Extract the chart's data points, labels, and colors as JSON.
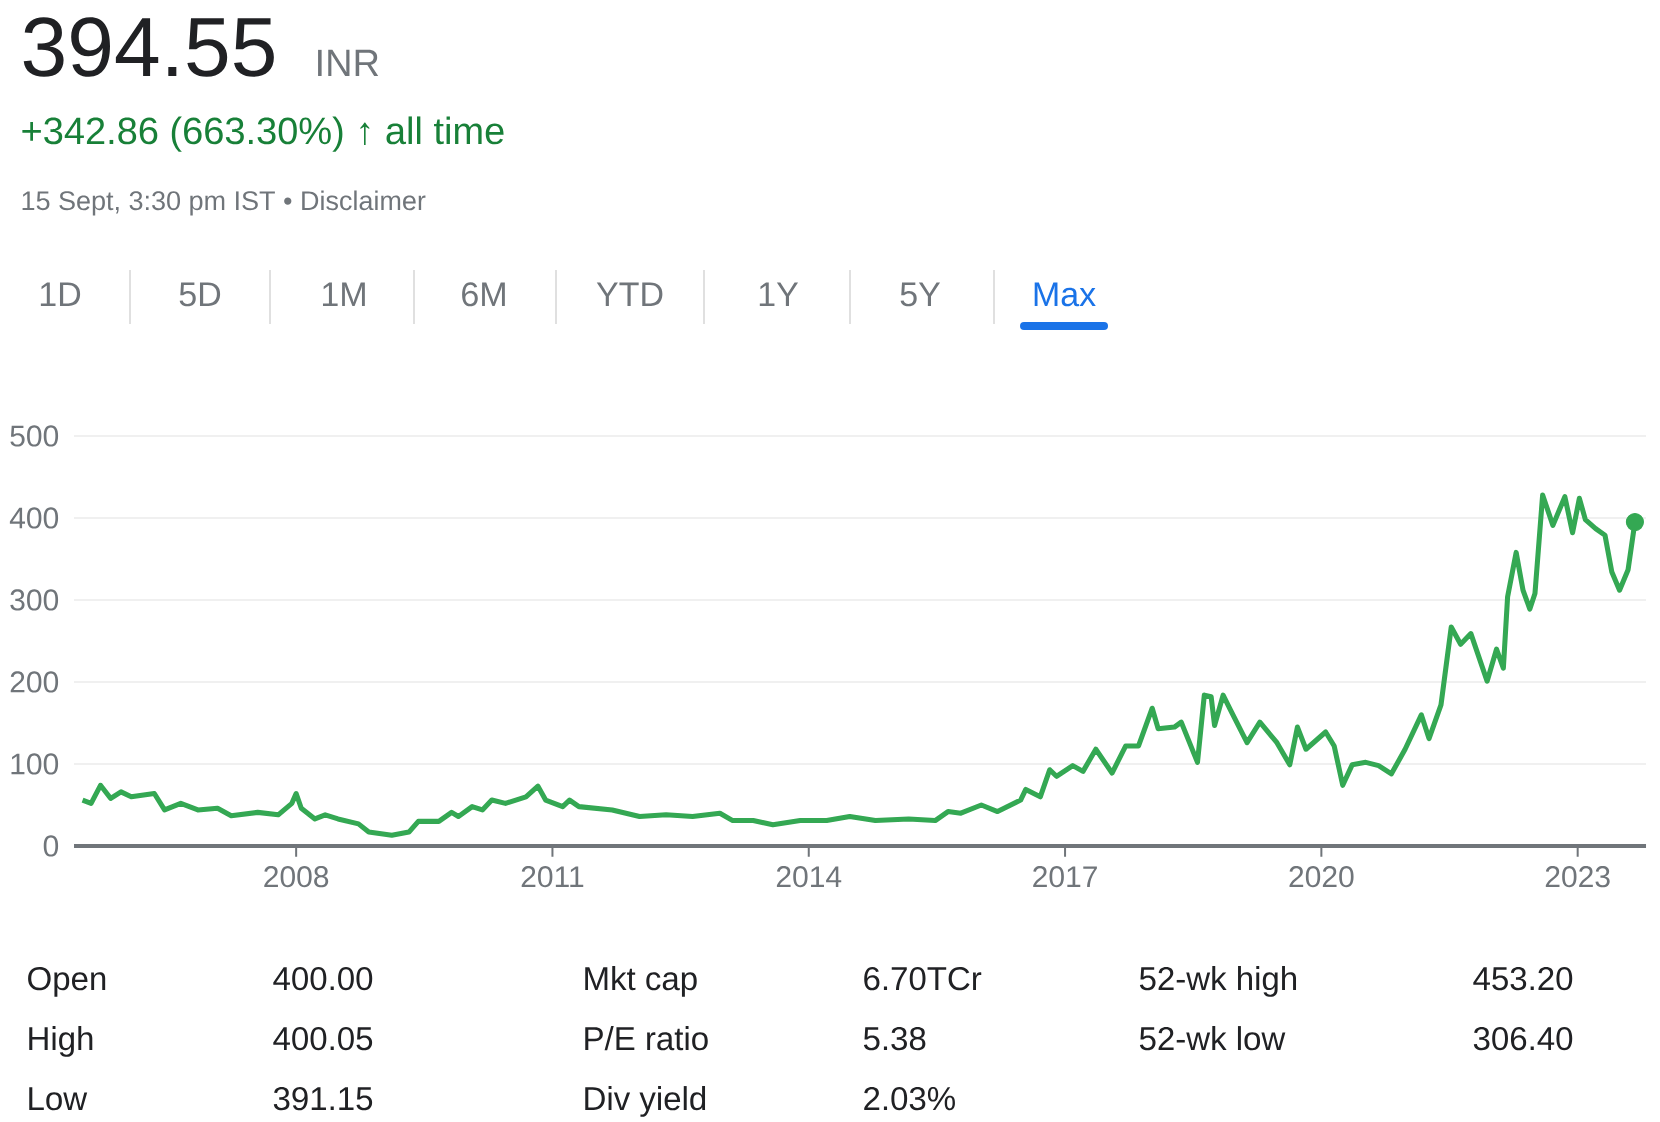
{
  "chart_data": {
    "type": "line",
    "title": "394.55",
    "subtitle": "+342.86 (663.30%) ↑ all time",
    "annotations": [
      "INR",
      "15 Sept, 3:30 pm IST • Disclaimer",
      "1D",
      "5D",
      "1M",
      "6M",
      "YTD",
      "1Y",
      "5Y",
      "Max",
      "Open",
      "400.00",
      "High",
      "400.05",
      "Low",
      "391.15",
      "Mkt cap",
      "6.70TCr",
      "P/E ratio",
      "5.38",
      "Div yield",
      "2.03%",
      "52-wk high",
      "453.20",
      "52-wk low",
      "306.40"
    ],
    "xlim": [
      2005.4,
      2023.8
    ],
    "xticks": [
      2008,
      2011,
      2014,
      2017,
      2020,
      2023
    ],
    "ylim": [
      0,
      500
    ],
    "yticks": [
      0,
      100,
      200,
      300,
      400,
      500
    ],
    "grid": "y",
    "series": [
      {
        "color": "#34a853",
        "x": [
          2005.5,
          2005.6,
          2005.71,
          2005.83,
          2005.95,
          2006.07,
          2006.34,
          2006.46,
          2006.65,
          2006.85,
          2007.08,
          2007.24,
          2007.55,
          2007.79,
          2007.95,
          2008.0,
          2008.06,
          2008.22,
          2008.34,
          2008.49,
          2008.73,
          2008.85,
          2009.12,
          2009.32,
          2009.43,
          2009.67,
          2009.82,
          2009.9,
          2010.06,
          2010.18,
          2010.29,
          2010.45,
          2010.69,
          2010.83,
          2010.92,
          2011.12,
          2011.2,
          2011.31,
          2011.7,
          2012.02,
          2012.33,
          2012.64,
          2012.96,
          2013.11,
          2013.35,
          2013.58,
          2013.9,
          2014.21,
          2014.48,
          2014.78,
          2015.17,
          2015.48,
          2015.63,
          2015.78,
          2016.02,
          2016.21,
          2016.48,
          2016.54,
          2016.71,
          2016.82,
          2016.9,
          2017.09,
          2017.21,
          2017.36,
          2017.55,
          2017.71,
          2017.86,
          2018.02,
          2018.09,
          2018.28,
          2018.36,
          2018.55,
          2018.63,
          2018.71,
          2018.75,
          2018.85,
          2018.94,
          2019.13,
          2019.28,
          2019.48,
          2019.63,
          2019.72,
          2019.82,
          2020.05,
          2020.15,
          2020.25,
          2020.36,
          2020.52,
          2020.67,
          2020.82,
          2020.98,
          2021.17,
          2021.26,
          2021.4,
          2021.52,
          2021.63,
          2021.75,
          2021.94,
          2022.05,
          2022.13,
          2022.18,
          2022.28,
          2022.36,
          2022.44,
          2022.5,
          2022.59,
          2022.71,
          2022.85,
          2022.94,
          2023.02,
          2023.09,
          2023.21,
          2023.32,
          2023.4,
          2023.49,
          2023.59,
          2023.67
        ],
        "values": [
          56,
          52,
          74,
          58,
          66,
          60,
          64,
          44,
          52,
          44,
          46,
          37,
          41,
          38,
          52,
          64,
          46,
          33,
          38,
          33,
          27,
          17,
          13,
          17,
          30,
          30,
          41,
          36,
          48,
          44,
          56,
          52,
          60,
          73,
          56,
          48,
          56,
          48,
          44,
          36,
          38,
          36,
          40,
          31,
          31,
          26,
          31,
          31,
          36,
          31,
          33,
          31,
          42,
          40,
          50,
          42,
          56,
          69,
          60,
          93,
          85,
          98,
          91,
          118,
          89,
          122,
          122,
          168,
          143,
          145,
          151,
          102,
          184,
          182,
          147,
          184,
          165,
          126,
          151,
          126,
          99,
          145,
          118,
          139,
          122,
          74,
          99,
          102,
          98,
          88,
          118,
          160,
          131,
          172,
          267,
          246,
          259,
          201,
          240,
          217,
          304,
          358,
          312,
          289,
          308,
          428,
          391,
          426,
          382,
          424,
          398,
          387,
          379,
          334,
          312,
          337,
          395
        ]
      },
      {
        "type": "scatter",
        "marker": "circle",
        "color": "#34a853",
        "x": [
          2023.67
        ],
        "values": [
          395
        ]
      }
    ]
  }
}
